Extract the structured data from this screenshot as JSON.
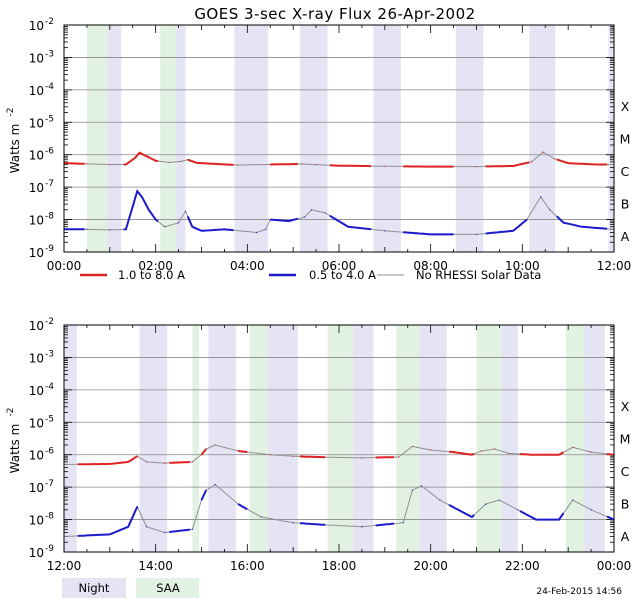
{
  "title": "GOES 3-sec X-ray Flux   26-Apr-2002",
  "timestamp": "24-Feb-2015 14:56",
  "colors": {
    "long": "#dd2222",
    "short": "#1a1acc",
    "nodata": "#909090",
    "night": "#e4e4f4",
    "saa": "#e2f2e2",
    "grid": "#888888"
  },
  "legend": [
    {
      "label": "1.0 to 8.0 A",
      "color": "#dd2222"
    },
    {
      "label": "0.5 to 4.0 A",
      "color": "#1a1acc"
    },
    {
      "label": "No RHESSI Solar Data",
      "color": "#909090"
    }
  ],
  "band_legend": {
    "night": "Night",
    "saa": "SAA"
  },
  "chart_data": [
    {
      "type": "line",
      "xrange": [
        0,
        12
      ],
      "xticks": [
        "00:00",
        "02:00",
        "04:00",
        "06:00",
        "08:00",
        "10:00",
        "12:00"
      ],
      "ylabel": "Watts m",
      "ylabel_sup": "-2",
      "ylim_exp": [
        -9,
        -2
      ],
      "yticks": [
        {
          "base": "10",
          "exp": "-9"
        },
        {
          "base": "10",
          "exp": "-8"
        },
        {
          "base": "10",
          "exp": "-7"
        },
        {
          "base": "10",
          "exp": "-6"
        },
        {
          "base": "10",
          "exp": "-5"
        },
        {
          "base": "10",
          "exp": "-4"
        },
        {
          "base": "10",
          "exp": "-3"
        },
        {
          "base": "10",
          "exp": "-2"
        }
      ],
      "classes": [
        {
          "name": "A",
          "exp": -8.5
        },
        {
          "name": "B",
          "exp": -7.5
        },
        {
          "name": "C",
          "exp": -6.5
        },
        {
          "name": "M",
          "exp": -5.5
        },
        {
          "name": "X",
          "exp": -4.5
        }
      ],
      "night": [
        [
          0.95,
          1.25
        ],
        [
          2.45,
          2.65
        ],
        [
          3.72,
          4.45
        ],
        [
          5.15,
          5.75
        ],
        [
          6.75,
          7.35
        ],
        [
          8.55,
          9.15
        ],
        [
          10.15,
          10.72
        ],
        [
          11.88,
          12.0
        ]
      ],
      "saa": [
        [
          0.5,
          0.95
        ],
        [
          2.1,
          2.45
        ],
        [
          4.0,
          4.25
        ]
      ],
      "series": [
        {
          "name": "1.0 to 8.0 A",
          "points": [
            [
              0,
              5.5e-07
            ],
            [
              0.5,
              5.2e-07
            ],
            [
              1.0,
              5e-07
            ],
            [
              1.35,
              5e-07
            ],
            [
              1.55,
              8e-07
            ],
            [
              1.65,
              1.15e-06
            ],
            [
              1.8,
              9e-07
            ],
            [
              2.0,
              6.5e-07
            ],
            [
              2.3,
              5.8e-07
            ],
            [
              2.55,
              6.2e-07
            ],
            [
              2.7,
              7e-07
            ],
            [
              2.9,
              5.6e-07
            ],
            [
              3.3,
              5.2e-07
            ],
            [
              3.8,
              4.8e-07
            ],
            [
              4.5,
              5e-07
            ],
            [
              5.2,
              5.2e-07
            ],
            [
              5.5,
              4.9e-07
            ],
            [
              6.0,
              4.6e-07
            ],
            [
              7.0,
              4.4e-07
            ],
            [
              8.0,
              4.3e-07
            ],
            [
              9.0,
              4.3e-07
            ],
            [
              9.8,
              4.5e-07
            ],
            [
              10.2,
              6e-07
            ],
            [
              10.45,
              1.2e-06
            ],
            [
              10.7,
              7.5e-07
            ],
            [
              11.0,
              5.5e-07
            ],
            [
              11.6,
              5e-07
            ],
            [
              12.0,
              5e-07
            ]
          ]
        },
        {
          "name": "0.5 to 4.0 A",
          "points": [
            [
              0,
              5e-09
            ],
            [
              0.5,
              5e-09
            ],
            [
              1.0,
              4.8e-09
            ],
            [
              1.35,
              5e-09
            ],
            [
              1.45,
              1.5e-08
            ],
            [
              1.6,
              7.5e-08
            ],
            [
              1.7,
              5e-08
            ],
            [
              1.85,
              2e-08
            ],
            [
              2.0,
              1e-08
            ],
            [
              2.2,
              6e-09
            ],
            [
              2.5,
              8e-09
            ],
            [
              2.65,
              1.8e-08
            ],
            [
              2.8,
              6e-09
            ],
            [
              3.0,
              4.5e-09
            ],
            [
              3.5,
              5e-09
            ],
            [
              4.2,
              4e-09
            ],
            [
              4.4,
              5e-09
            ],
            [
              4.5,
              1e-08
            ],
            [
              4.9,
              9e-09
            ],
            [
              5.25,
              1.2e-08
            ],
            [
              5.4,
              2e-08
            ],
            [
              5.7,
              1.6e-08
            ],
            [
              6.2,
              6e-09
            ],
            [
              7.0,
              4.5e-09
            ],
            [
              8.0,
              3.5e-09
            ],
            [
              9.0,
              3.5e-09
            ],
            [
              9.8,
              4.5e-09
            ],
            [
              10.1,
              1e-08
            ],
            [
              10.4,
              5e-08
            ],
            [
              10.6,
              2e-08
            ],
            [
              10.9,
              8e-09
            ],
            [
              11.3,
              6e-09
            ],
            [
              12.0,
              5e-09
            ]
          ]
        }
      ]
    },
    {
      "type": "line",
      "xrange": [
        12,
        24
      ],
      "xticks": [
        "12:00",
        "14:00",
        "16:00",
        "18:00",
        "20:00",
        "22:00",
        "00:00"
      ],
      "ylabel": "Watts m",
      "ylabel_sup": "-2",
      "ylim_exp": [
        -9,
        -2
      ],
      "yticks": [
        {
          "base": "10",
          "exp": "-9"
        },
        {
          "base": "10",
          "exp": "-8"
        },
        {
          "base": "10",
          "exp": "-7"
        },
        {
          "base": "10",
          "exp": "-6"
        },
        {
          "base": "10",
          "exp": "-5"
        },
        {
          "base": "10",
          "exp": "-4"
        },
        {
          "base": "10",
          "exp": "-3"
        },
        {
          "base": "10",
          "exp": "-2"
        }
      ],
      "classes": [
        {
          "name": "A",
          "exp": -8.5
        },
        {
          "name": "B",
          "exp": -7.5
        },
        {
          "name": "C",
          "exp": -6.5
        },
        {
          "name": "M",
          "exp": -5.5
        },
        {
          "name": "X",
          "exp": -4.5
        }
      ],
      "night": [
        [
          12.0,
          12.28
        ],
        [
          13.65,
          14.25
        ],
        [
          15.15,
          15.75
        ],
        [
          16.45,
          17.1
        ],
        [
          18.3,
          18.75
        ],
        [
          19.75,
          20.35
        ],
        [
          21.55,
          21.9
        ],
        [
          23.35,
          23.8
        ]
      ],
      "saa": [
        [
          14.8,
          14.95
        ],
        [
          16.05,
          16.45
        ],
        [
          17.75,
          18.3
        ],
        [
          19.25,
          19.75
        ],
        [
          21.0,
          21.55
        ],
        [
          22.95,
          23.35
        ]
      ],
      "series": [
        {
          "name": "1.0 to 8.0 A",
          "points": [
            [
              12.0,
              5e-07
            ],
            [
              13.0,
              5.2e-07
            ],
            [
              13.4,
              6e-07
            ],
            [
              13.6,
              9e-07
            ],
            [
              13.8,
              6e-07
            ],
            [
              14.2,
              5.5e-07
            ],
            [
              14.8,
              6e-07
            ],
            [
              15.0,
              1e-06
            ],
            [
              15.1,
              1.5e-06
            ],
            [
              15.3,
              2e-06
            ],
            [
              15.8,
              1.3e-06
            ],
            [
              16.5,
              1e-06
            ],
            [
              17.0,
              9e-07
            ],
            [
              17.5,
              8.5e-07
            ],
            [
              18.5,
              8e-07
            ],
            [
              19.3,
              8.5e-07
            ],
            [
              19.6,
              1.8e-06
            ],
            [
              20.0,
              1.4e-06
            ],
            [
              20.5,
              1.2e-06
            ],
            [
              20.9,
              1e-06
            ],
            [
              21.1,
              1.3e-06
            ],
            [
              21.4,
              1.5e-06
            ],
            [
              21.7,
              1.1e-06
            ],
            [
              22.2,
              1e-06
            ],
            [
              22.8,
              1e-06
            ],
            [
              23.1,
              1.7e-06
            ],
            [
              23.5,
              1.2e-06
            ],
            [
              24.0,
              1e-06
            ]
          ]
        },
        {
          "name": "0.5 to 4.0 A",
          "points": [
            [
              12.0,
              3e-09
            ],
            [
              13.0,
              3.5e-09
            ],
            [
              13.4,
              6e-09
            ],
            [
              13.6,
              2.5e-08
            ],
            [
              13.8,
              6e-09
            ],
            [
              14.2,
              4e-09
            ],
            [
              14.8,
              5e-09
            ],
            [
              15.0,
              4e-08
            ],
            [
              15.1,
              8e-08
            ],
            [
              15.3,
              1.2e-07
            ],
            [
              15.8,
              3e-08
            ],
            [
              16.3,
              1.2e-08
            ],
            [
              17.0,
              8e-09
            ],
            [
              17.6,
              7e-09
            ],
            [
              18.5,
              6e-09
            ],
            [
              19.4,
              8e-09
            ],
            [
              19.6,
              8e-08
            ],
            [
              19.8,
              1.1e-07
            ],
            [
              20.2,
              4e-08
            ],
            [
              20.6,
              2e-08
            ],
            [
              20.9,
              1.2e-08
            ],
            [
              21.2,
              3e-08
            ],
            [
              21.5,
              4e-08
            ],
            [
              21.9,
              2e-08
            ],
            [
              22.3,
              1e-08
            ],
            [
              22.8,
              1e-08
            ],
            [
              23.1,
              4e-08
            ],
            [
              23.5,
              2e-08
            ],
            [
              24.0,
              1e-08
            ]
          ]
        }
      ]
    }
  ]
}
